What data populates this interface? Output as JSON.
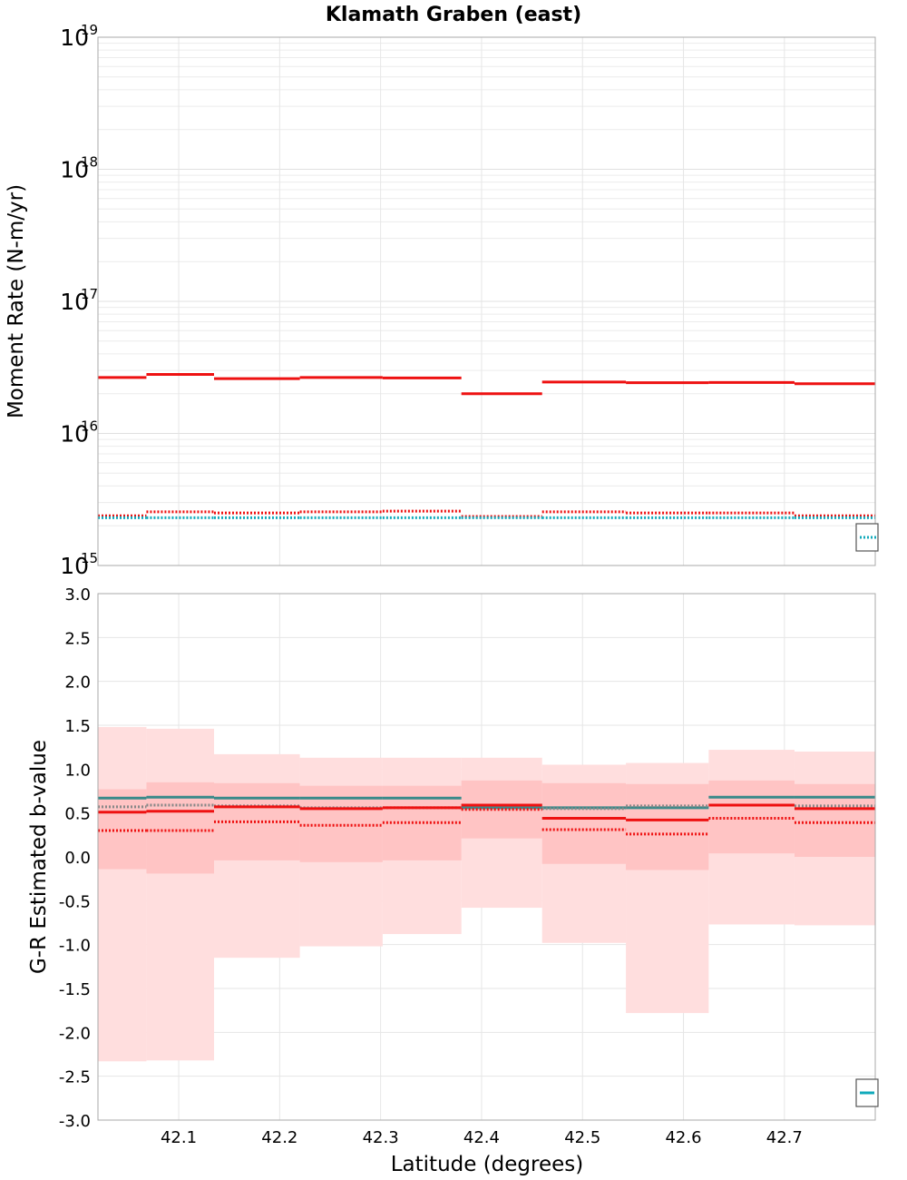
{
  "title": "Klamath Graben (east)",
  "xlabel": "Latitude (degrees)",
  "x_ticks": [
    "42.1",
    "42.2",
    "42.3",
    "42.4",
    "42.5",
    "42.6",
    "42.7"
  ],
  "colors": {
    "red": "#ee1111",
    "teal": "#3a8a8a",
    "cyan": "#11aabb",
    "gray_dotted": "#888888",
    "band_inner": "#ffc4c4",
    "band_outer": "#ffdede"
  },
  "chart_data": [
    {
      "type": "line",
      "name": "moment-rate",
      "ylabel": "Moment Rate (N-m/yr)",
      "yscale": "log",
      "xlim": [
        42.02,
        42.79
      ],
      "ylim": [
        1000000000000000.0,
        1e+19
      ],
      "y_ticks": [
        {
          "base": "10",
          "exp": "15"
        },
        {
          "base": "10",
          "exp": "16"
        },
        {
          "base": "10",
          "exp": "17"
        },
        {
          "base": "10",
          "exp": "18"
        },
        {
          "base": "10",
          "exp": "19"
        }
      ],
      "bin_edges": [
        42.02,
        42.068,
        42.135,
        42.22,
        42.302,
        42.38,
        42.46,
        42.543,
        42.625,
        42.71,
        42.79
      ],
      "series": [
        {
          "name": "red-solid",
          "color": "#ee1111",
          "style": "solid",
          "values": [
            2.65e+16,
            2.8e+16,
            2.6e+16,
            2.65e+16,
            2.63e+16,
            2e+16,
            2.45e+16,
            2.42e+16,
            2.43e+16,
            2.38e+16
          ]
        },
        {
          "name": "red-dotted",
          "color": "#ee1111",
          "style": "dotted",
          "values": [
            2380000000000000.0,
            2550000000000000.0,
            2500000000000000.0,
            2550000000000000.0,
            2580000000000000.0,
            2350000000000000.0,
            2550000000000000.0,
            2500000000000000.0,
            2500000000000000.0,
            2380000000000000.0
          ]
        },
        {
          "name": "cyan-dotted",
          "color": "#11aabb",
          "style": "dotted",
          "values": [
            2300000000000000.0,
            2300000000000000.0,
            2300000000000000.0,
            2300000000000000.0,
            2300000000000000.0,
            2300000000000000.0,
            2300000000000000.0,
            2300000000000000.0,
            2300000000000000.0,
            2300000000000000.0
          ]
        }
      ]
    },
    {
      "type": "line",
      "name": "b-value",
      "ylabel": "G-R Estimated b-value",
      "yscale": "linear",
      "xlim": [
        42.02,
        42.79
      ],
      "ylim": [
        -3.0,
        3.0
      ],
      "y_ticks": [
        "3.0",
        "2.5",
        "2.0",
        "1.5",
        "1.0",
        "0.5",
        "0.0",
        "-0.5",
        "-1.0",
        "-1.5",
        "-2.0",
        "-2.5",
        "-3.0"
      ],
      "bin_edges": [
        42.02,
        42.068,
        42.135,
        42.22,
        42.302,
        42.38,
        42.46,
        42.543,
        42.625,
        42.71,
        42.79
      ],
      "bands": [
        {
          "name": "outer-band",
          "color": "#ffdede",
          "lower": [
            -2.33,
            -2.32,
            -1.15,
            -1.02,
            -0.88,
            -0.58,
            -0.98,
            -1.78,
            -0.77,
            -0.78
          ],
          "upper": [
            1.48,
            1.46,
            1.17,
            1.13,
            1.13,
            1.13,
            1.05,
            1.07,
            1.22,
            1.2
          ]
        },
        {
          "name": "inner-band",
          "color": "#ffc4c4",
          "lower": [
            -0.14,
            -0.19,
            -0.04,
            -0.06,
            -0.04,
            0.21,
            -0.08,
            -0.15,
            0.04,
            0.0
          ],
          "upper": [
            0.77,
            0.85,
            0.84,
            0.81,
            0.81,
            0.87,
            0.84,
            0.83,
            0.87,
            0.83
          ]
        }
      ],
      "series": [
        {
          "name": "teal-solid",
          "color": "#3a8a8a",
          "style": "solid",
          "values": [
            0.67,
            0.68,
            0.67,
            0.67,
            0.67,
            0.56,
            0.56,
            0.56,
            0.68,
            0.68
          ]
        },
        {
          "name": "gray-dotted",
          "color": "#888888",
          "style": "dotted",
          "values": [
            0.57,
            0.59,
            0.58,
            0.56,
            0.56,
            0.59,
            0.55,
            0.58,
            0.59,
            0.58
          ]
        },
        {
          "name": "red-solid",
          "color": "#ee1111",
          "style": "solid",
          "values": [
            0.51,
            0.52,
            0.57,
            0.55,
            0.56,
            0.59,
            0.44,
            0.42,
            0.59,
            0.55
          ]
        },
        {
          "name": "red-dotted",
          "color": "#ee1111",
          "style": "dotted",
          "values": [
            0.3,
            0.3,
            0.4,
            0.36,
            0.39,
            0.54,
            0.31,
            0.26,
            0.44,
            0.39
          ]
        }
      ]
    }
  ]
}
